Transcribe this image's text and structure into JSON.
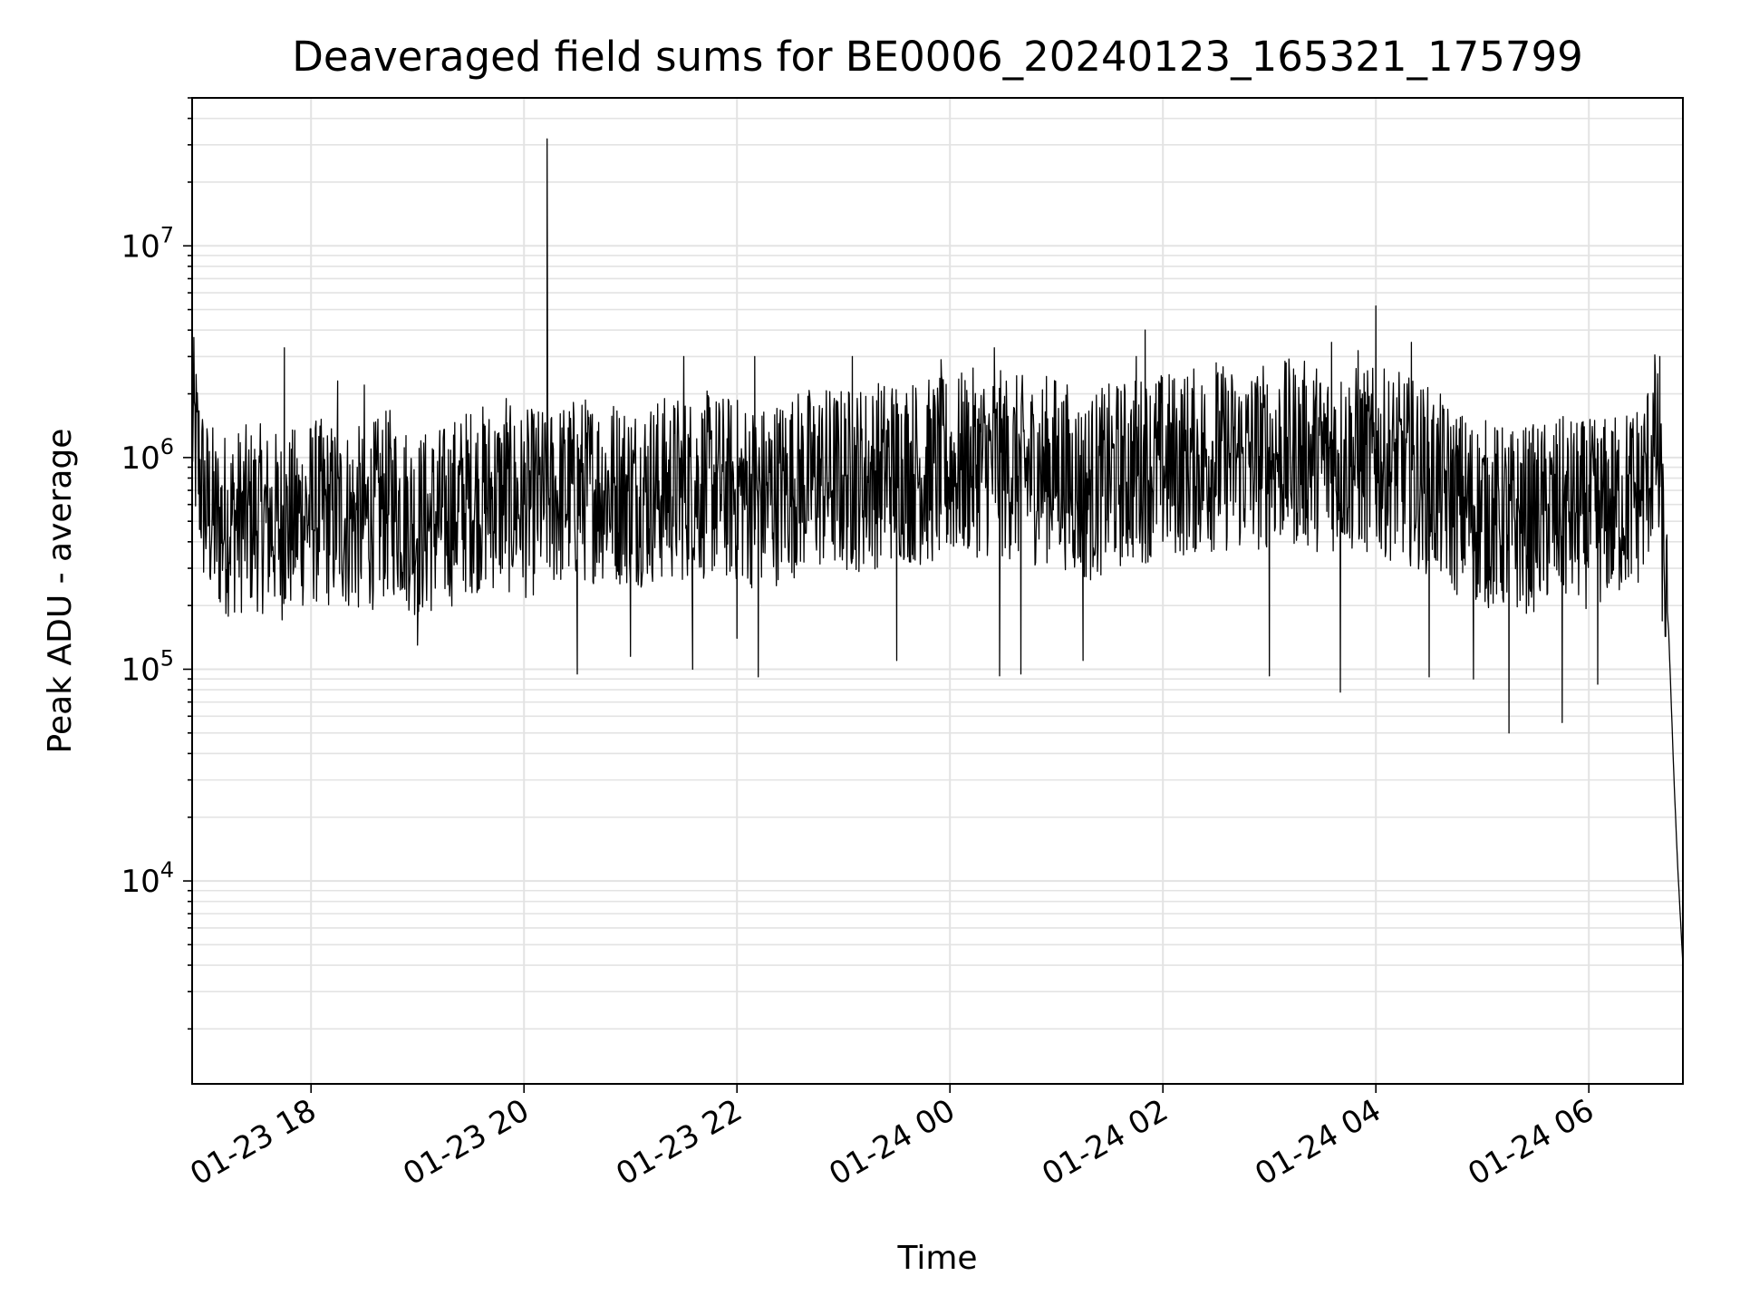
{
  "chart_data": {
    "type": "line",
    "title": "Deaveraged field sums for BE0006_20240123_165321_175799",
    "xlabel": "Time",
    "ylabel": "Peak ADU - average",
    "yscale": "log",
    "ylim": [
      1100,
      50000000
    ],
    "xlim": [
      "2024-01-23 16:53",
      "2024-01-24 06:53"
    ],
    "grid": true,
    "x_ticks": [
      {
        "t": "2024-01-23 18:00",
        "label": "01-23 18"
      },
      {
        "t": "2024-01-23 20:00",
        "label": "01-23 20"
      },
      {
        "t": "2024-01-23 22:00",
        "label": "01-23 22"
      },
      {
        "t": "2024-01-24 00:00",
        "label": "01-24 00"
      },
      {
        "t": "2024-01-24 02:00",
        "label": "01-24 02"
      },
      {
        "t": "2024-01-24 04:00",
        "label": "01-24 04"
      },
      {
        "t": "2024-01-24 06:00",
        "label": "01-24 06"
      }
    ],
    "y_ticks": [
      {
        "value": 10000,
        "base": "10",
        "exp": "4"
      },
      {
        "value": 100000,
        "base": "10",
        "exp": "5"
      },
      {
        "value": 1000000,
        "base": "10",
        "exp": "6"
      },
      {
        "value": 10000000,
        "base": "10",
        "exp": "7"
      }
    ],
    "series": [
      {
        "color": "#000000",
        "points": [
          [
            "2024-01-23 16:53",
            1500000
          ],
          [
            "2024-01-23 17:00",
            600000
          ],
          [
            "2024-01-23 17:07",
            480000
          ],
          [
            "2024-01-23 17:15",
            500000
          ],
          [
            "2024-01-23 17:30",
            520000
          ],
          [
            "2024-01-23 17:45",
            470000
          ],
          [
            "2024-01-23 18:00",
            560000
          ],
          [
            "2024-01-23 18:15",
            530000
          ],
          [
            "2024-01-23 18:30",
            500000
          ],
          [
            "2024-01-23 18:45",
            620000
          ],
          [
            "2024-01-23 19:00",
            480000
          ],
          [
            "2024-01-23 19:15",
            520000
          ],
          [
            "2024-01-23 19:30",
            640000
          ],
          [
            "2024-01-23 19:45",
            650000
          ],
          [
            "2024-01-23 20:00",
            600000
          ],
          [
            "2024-01-23 20:15",
            650000
          ],
          [
            "2024-01-23 20:30",
            700000
          ],
          [
            "2024-01-23 20:45",
            720000
          ],
          [
            "2024-01-23 21:00",
            680000
          ],
          [
            "2024-01-23 21:15",
            700000
          ],
          [
            "2024-01-23 21:30",
            720000
          ],
          [
            "2024-01-23 21:45",
            740000
          ],
          [
            "2024-01-23 22:00",
            700000
          ],
          [
            "2024-01-23 22:15",
            650000
          ],
          [
            "2024-01-23 22:30",
            750000
          ],
          [
            "2024-01-23 22:45",
            800000
          ],
          [
            "2024-01-23 23:00",
            780000
          ],
          [
            "2024-01-23 23:15",
            820000
          ],
          [
            "2024-01-23 23:30",
            900000
          ],
          [
            "2024-01-23 23:45",
            850000
          ],
          [
            "2024-01-24 00:00",
            880000
          ],
          [
            "2024-01-24 00:15",
            950000
          ],
          [
            "2024-01-24 00:30",
            920000
          ],
          [
            "2024-01-24 00:45",
            860000
          ],
          [
            "2024-01-24 01:00",
            900000
          ],
          [
            "2024-01-24 01:15",
            700000
          ],
          [
            "2024-01-24 01:30",
            800000
          ],
          [
            "2024-01-24 01:45",
            880000
          ],
          [
            "2024-01-24 02:00",
            920000
          ],
          [
            "2024-01-24 02:15",
            950000
          ],
          [
            "2024-01-24 02:30",
            1000000
          ],
          [
            "2024-01-24 02:45",
            980000
          ],
          [
            "2024-01-24 03:00",
            1020000
          ],
          [
            "2024-01-24 03:15",
            1050000
          ],
          [
            "2024-01-24 03:30",
            1000000
          ],
          [
            "2024-01-24 03:45",
            980000
          ],
          [
            "2024-01-24 04:00",
            950000
          ],
          [
            "2024-01-24 04:15",
            900000
          ],
          [
            "2024-01-24 04:30",
            780000
          ],
          [
            "2024-01-24 04:45",
            620000
          ],
          [
            "2024-01-24 05:00",
            550000
          ],
          [
            "2024-01-24 05:15",
            500000
          ],
          [
            "2024-01-24 05:30",
            520000
          ],
          [
            "2024-01-24 05:45",
            560000
          ],
          [
            "2024-01-24 06:00",
            540000
          ],
          [
            "2024-01-24 06:15",
            580000
          ],
          [
            "2024-01-24 06:30",
            700000
          ],
          [
            "2024-01-24 06:38",
            1200000
          ],
          [
            "2024-01-24 06:45",
            150000
          ],
          [
            "2024-01-24 06:48",
            30000
          ],
          [
            "2024-01-24 06:50",
            12000
          ],
          [
            "2024-01-24 06:53",
            4000
          ]
        ],
        "spikes": [
          [
            "2024-01-23 17:45",
            3300000
          ],
          [
            "2024-01-23 18:15",
            2300000
          ],
          [
            "2024-01-23 18:30",
            2200000
          ],
          [
            "2024-01-23 19:00",
            130000
          ],
          [
            "2024-01-23 19:50",
            1900000
          ],
          [
            "2024-01-23 20:13",
            32000000
          ],
          [
            "2024-01-23 20:30",
            95000
          ],
          [
            "2024-01-23 21:00",
            115000
          ],
          [
            "2024-01-23 21:30",
            3000000
          ],
          [
            "2024-01-23 21:35",
            100000
          ],
          [
            "2024-01-23 22:00",
            140000
          ],
          [
            "2024-01-23 22:10",
            3000000
          ],
          [
            "2024-01-23 22:12",
            92000
          ],
          [
            "2024-01-23 23:05",
            3000000
          ],
          [
            "2024-01-23 23:30",
            110000
          ],
          [
            "2024-01-23 23:55",
            2900000
          ],
          [
            "2024-01-24 00:25",
            3300000
          ],
          [
            "2024-01-24 00:28",
            93000
          ],
          [
            "2024-01-24 00:40",
            95000
          ],
          [
            "2024-01-24 01:15",
            110000
          ],
          [
            "2024-01-24 01:45",
            3000000
          ],
          [
            "2024-01-24 01:50",
            4000000
          ],
          [
            "2024-01-24 02:30",
            2800000
          ],
          [
            "2024-01-24 03:00",
            93000
          ],
          [
            "2024-01-24 03:35",
            3500000
          ],
          [
            "2024-01-24 03:40",
            78000
          ],
          [
            "2024-01-24 03:50",
            3200000
          ],
          [
            "2024-01-24 04:00",
            5200000
          ],
          [
            "2024-01-24 04:20",
            3500000
          ],
          [
            "2024-01-24 04:30",
            92000
          ],
          [
            "2024-01-24 04:55",
            90000
          ],
          [
            "2024-01-24 05:15",
            50000
          ],
          [
            "2024-01-24 05:45",
            56000
          ],
          [
            "2024-01-24 06:05",
            85000
          ],
          [
            "2024-01-24 06:40",
            3000000
          ]
        ]
      }
    ]
  }
}
